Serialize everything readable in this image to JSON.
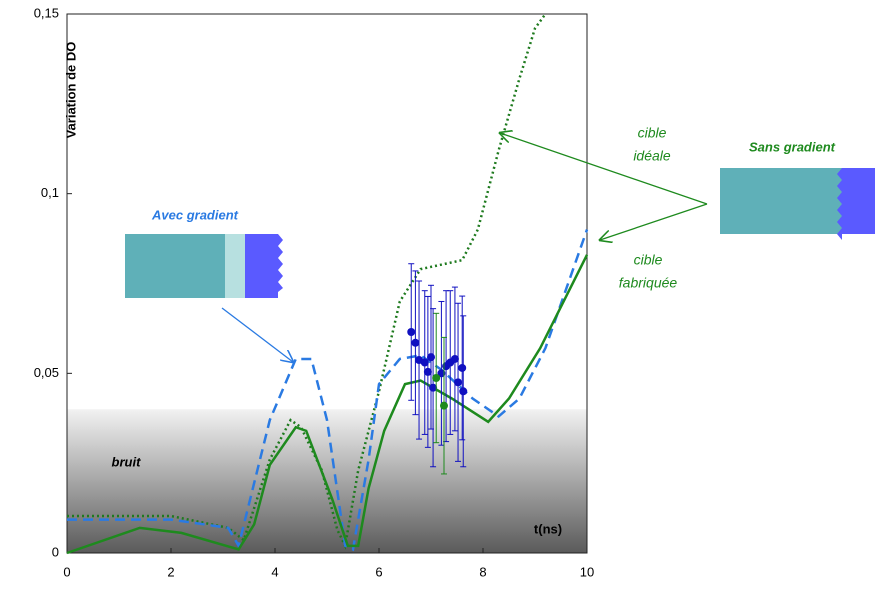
{
  "chart_data": {
    "type": "line",
    "y_label": "Variation de DO",
    "x_label": "t(ns)",
    "xlim": [
      0,
      10
    ],
    "xticks": [
      0,
      2,
      4,
      6,
      8,
      10
    ],
    "ylim": [
      0,
      0.15
    ],
    "yticks": [
      0,
      {
        "value": 0.05,
        "label": "0,05"
      },
      {
        "value": 0.1,
        "label": "0,1"
      },
      {
        "value": 0.15,
        "label": "0,15"
      }
    ],
    "noise_band": {
      "range": [
        0,
        0.04
      ],
      "label": "bruit"
    },
    "series": [
      {
        "mode": "dotted",
        "color": "#1e7a1e",
        "x": [
          0,
          2,
          3.1,
          3.4,
          3.9,
          4.3,
          4.5,
          4.9,
          5.2,
          5.35,
          5.6,
          6.0,
          6.4,
          6.8,
          7.6,
          7.9,
          8.3,
          8.7,
          9.0,
          9.2
        ],
        "values": [
          0.0103,
          0.0103,
          0.007,
          0.0036,
          0.026,
          0.037,
          0.035,
          0.023,
          0.0064,
          0.002,
          0.023,
          0.045,
          0.07,
          0.079,
          0.0815,
          0.09,
          0.112,
          0.132,
          0.146,
          0.15
        ]
      },
      {
        "mode": "dashed",
        "color": "#2a7ae2",
        "x": [
          0,
          2,
          3.1,
          3.3,
          3.9,
          4.4,
          4.7,
          5.0,
          5.35,
          5.5,
          5.8,
          6.0,
          6.4,
          6.8,
          7.2,
          7.8,
          8.3,
          8.7,
          9.2,
          10
        ],
        "values": [
          0.0093,
          0.0093,
          0.007,
          0.002,
          0.037,
          0.054,
          0.054,
          0.037,
          0.002,
          0.001,
          0.026,
          0.047,
          0.054,
          0.055,
          0.051,
          0.043,
          0.038,
          0.043,
          0.057,
          0.09
        ]
      },
      {
        "mode": "solid",
        "color": "#1e8a1e",
        "x": [
          0,
          1.4,
          2.2,
          3.3,
          3.6,
          3.9,
          4.4,
          4.6,
          5.1,
          5.4,
          5.6,
          5.8,
          6.1,
          6.5,
          6.8,
          7.4,
          8.1,
          8.5,
          9.1,
          10
        ],
        "values": [
          0,
          0.007,
          0.0056,
          0.001,
          0.008,
          0.0245,
          0.035,
          0.034,
          0.015,
          0.002,
          0.002,
          0.018,
          0.034,
          0.047,
          0.048,
          0.043,
          0.0365,
          0.043,
          0.057,
          0.083
        ]
      },
      {
        "mode": "markers",
        "color": "#1010c0",
        "x": [
          6.62,
          6.7,
          6.77,
          6.88,
          6.94,
          7.0,
          7.04,
          7.2,
          7.29,
          7.37,
          7.46,
          7.52,
          7.6,
          7.62
        ],
        "values": [
          0.0615,
          0.0585,
          0.0537,
          0.053,
          0.0504,
          0.0545,
          0.046,
          0.05,
          0.052,
          0.053,
          0.054,
          0.0475,
          0.0515,
          0.045
        ],
        "errors": [
          0.019,
          0.02,
          0.022,
          0.02,
          0.021,
          0.02,
          0.022,
          0.02,
          0.021,
          0.02,
          0.02,
          0.022,
          0.02,
          0.021
        ]
      },
      {
        "mode": "markers",
        "color": "#1e8a1e",
        "x": [
          7.1,
          7.25
        ],
        "values": [
          0.0487,
          0.041
        ],
        "errors": [
          0.018,
          0.019
        ]
      }
    ],
    "annotations": {
      "avec": "Avec gradient",
      "sans": "Sans gradient",
      "ideale": [
        "cible",
        "idéale"
      ],
      "fabriquee": [
        "cible",
        "fabriquée"
      ]
    }
  }
}
